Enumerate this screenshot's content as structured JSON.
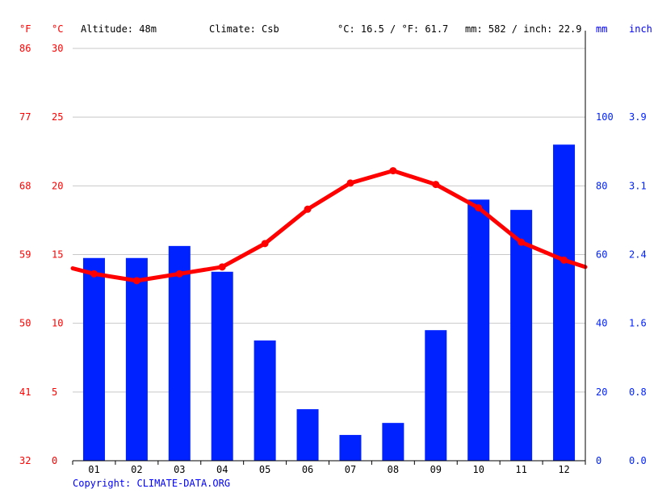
{
  "header": {
    "unit_f": "°F",
    "unit_c": "°C",
    "altitude": "Altitude: 48m",
    "climate": "Climate: Csb",
    "temp_avg": "°C: 16.5 / °F: 61.7",
    "precip_total": "mm: 582 / inch: 22.9",
    "unit_mm": "mm",
    "unit_inch": "inch"
  },
  "copyright": "Copyright: CLIMATE-DATA.ORG",
  "colors": {
    "temperature": "#ff0000",
    "precipitation": "#0022ff",
    "grid": "#c8c8c8"
  },
  "chart_data": {
    "type": "bar+line",
    "categories": [
      "01",
      "02",
      "03",
      "04",
      "05",
      "06",
      "07",
      "08",
      "09",
      "10",
      "11",
      "12"
    ],
    "series": [
      {
        "type": "bar",
        "axis": "right",
        "values": [
          59,
          59,
          62.5,
          55,
          35,
          15,
          7.5,
          11,
          38,
          76,
          73,
          92
        ]
      },
      {
        "type": "line",
        "axis": "left",
        "values": [
          13.6,
          13.1,
          13.6,
          14.1,
          15.8,
          18.3,
          20.2,
          21.1,
          20.1,
          18.4,
          15.9,
          14.6
        ],
        "edge_start": 14.0,
        "edge_end": 14.1
      }
    ],
    "left_axis_c": {
      "range": [
        0,
        30
      ],
      "ticks": [
        0,
        5,
        10,
        15,
        20,
        25,
        30
      ]
    },
    "left_axis_f": {
      "ticks": [
        "32",
        "41",
        "50",
        "59",
        "68",
        "77",
        "86"
      ]
    },
    "right_axis_mm": {
      "range": [
        0,
        120
      ],
      "ticks": [
        "0",
        "20",
        "40",
        "60",
        "80",
        "100"
      ]
    },
    "right_axis_inch": {
      "ticks": [
        "0.0",
        "0.8",
        "1.6",
        "2.4",
        "3.1",
        "3.9"
      ]
    },
    "grid": true
  }
}
